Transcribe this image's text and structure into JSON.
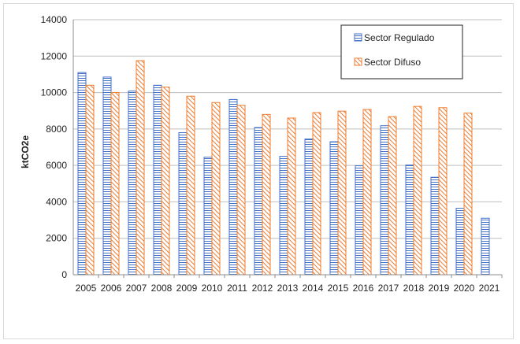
{
  "chart_data": {
    "type": "bar",
    "title": "",
    "xlabel": "",
    "ylabel": "ktCO2e",
    "ylim": [
      0,
      14000
    ],
    "yticks": [
      0,
      2000,
      4000,
      6000,
      8000,
      10000,
      12000,
      14000
    ],
    "grid": true,
    "legend_position": "top-right",
    "categories": [
      "2005",
      "2006",
      "2007",
      "2008",
      "2009",
      "2010",
      "2011",
      "2012",
      "2013",
      "2014",
      "2015",
      "2016",
      "2017",
      "2018",
      "2019",
      "2020",
      "2021"
    ],
    "series": [
      {
        "name": "Sector Regulado",
        "color": "#4472c4",
        "pattern": "horizontal-lines",
        "values": [
          11100,
          10850,
          10080,
          10400,
          7800,
          6450,
          9620,
          8080,
          6500,
          7450,
          7300,
          5980,
          8180,
          6020,
          5350,
          3650,
          3100
        ]
      },
      {
        "name": "Sector Difuso",
        "color": "#ed7d31",
        "pattern": "diagonal-lines",
        "values": [
          10400,
          10000,
          11750,
          10300,
          9800,
          9450,
          9300,
          8800,
          8600,
          8900,
          8980,
          9070,
          8680,
          9240,
          9170,
          8870,
          null
        ]
      }
    ]
  }
}
